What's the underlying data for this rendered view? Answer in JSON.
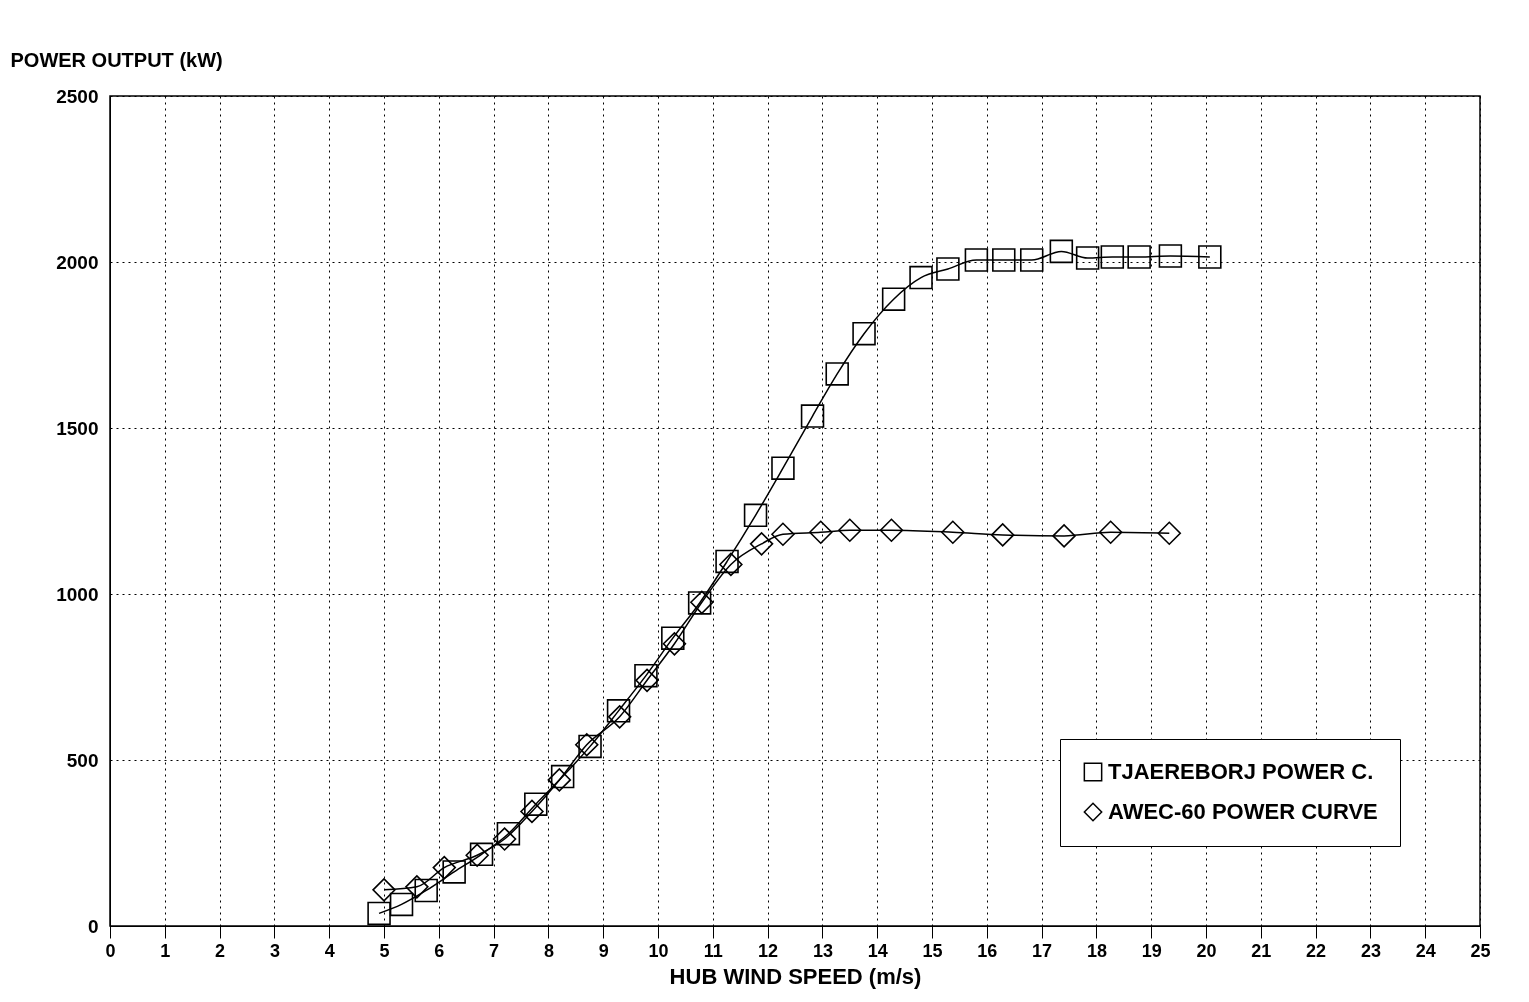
{
  "chart_data": {
    "type": "line",
    "xlabel": "HUB WIND SPEED (m/s)",
    "ylabel": "POWER OUTPUT (kW)",
    "xlim": [
      0,
      25
    ],
    "xticks": [
      0,
      1,
      2,
      3,
      4,
      5,
      6,
      7,
      8,
      9,
      10,
      11,
      12,
      13,
      14,
      15,
      16,
      17,
      18,
      19,
      20,
      21,
      22,
      23,
      24,
      25
    ],
    "ylim": [
      0,
      2500
    ],
    "yticks": [
      0,
      500,
      1000,
      1500,
      2000,
      2500
    ],
    "grid": true,
    "legend": "bottom right",
    "line_style": "solid",
    "series": [
      {
        "name": "TJAEREBORJ POWER C.",
        "color": "#000000",
        "marker": "square",
        "x": [
          4.91,
          5.32,
          5.77,
          6.28,
          6.78,
          7.27,
          7.77,
          8.26,
          8.76,
          9.28,
          9.78,
          10.27,
          10.76,
          11.26,
          11.78,
          12.28,
          12.82,
          13.27,
          13.76,
          14.3,
          14.8,
          15.29,
          15.81,
          16.31,
          16.82,
          17.36,
          17.84,
          18.29,
          18.78,
          19.35,
          20.07
        ],
        "values": [
          38,
          65,
          107,
          163,
          216,
          278,
          367,
          450,
          541,
          648,
          754,
          867,
          973,
          1098,
          1237,
          1379,
          1536,
          1663,
          1784,
          1888,
          1953,
          1979,
          2006,
          2006,
          2006,
          2032,
          2012,
          2015,
          2015,
          2018,
          2015
        ]
      },
      {
        "name": "AWEC-60 POWER CURVE",
        "color": "#000000",
        "marker": "diamond",
        "x": [
          5.0,
          5.6,
          6.1,
          6.7,
          7.2,
          7.7,
          8.2,
          8.7,
          9.3,
          9.8,
          10.3,
          10.8,
          11.33,
          11.89,
          12.28,
          12.97,
          13.5,
          14.26,
          15.38,
          16.29,
          17.41,
          18.26,
          19.33
        ],
        "values": [
          109,
          118,
          176,
          213,
          262,
          345,
          440,
          546,
          630,
          740,
          850,
          975,
          1089,
          1151,
          1180,
          1186,
          1192,
          1192,
          1186,
          1178,
          1175,
          1186,
          1183
        ]
      }
    ]
  }
}
